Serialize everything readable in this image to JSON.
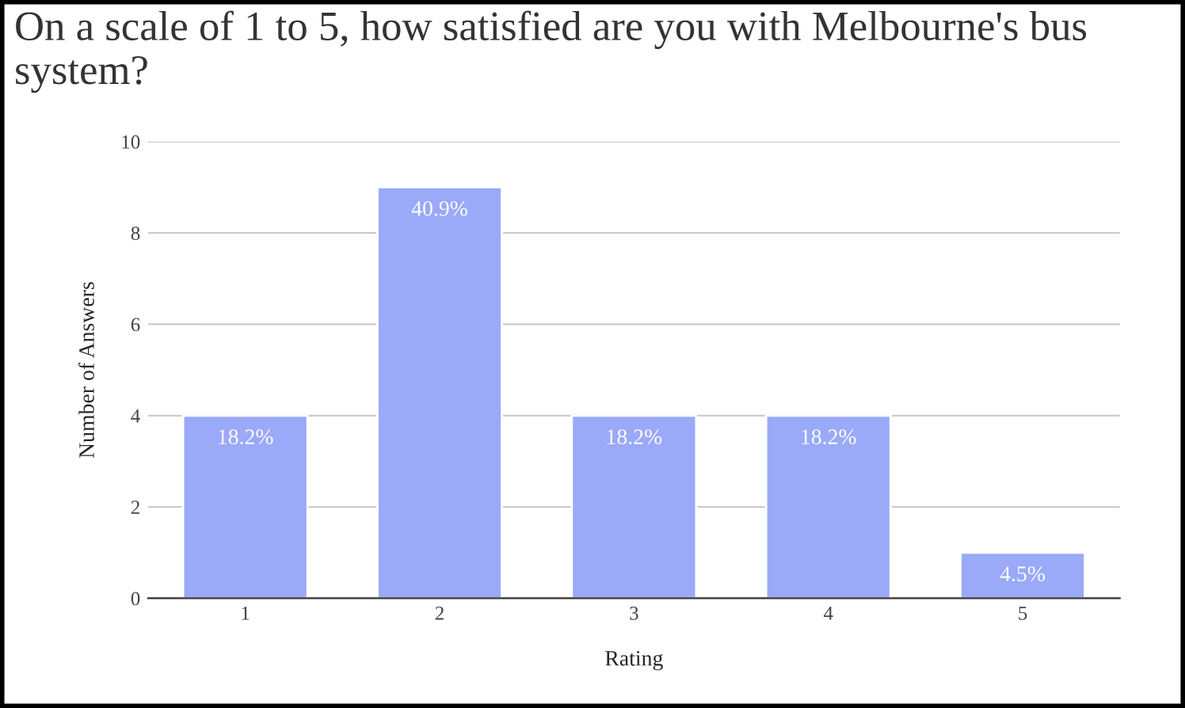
{
  "chart_data": {
    "type": "bar",
    "title": "On a scale of 1 to 5, how satisfied are you with Melbourne's bus system?",
    "xlabel": "Rating",
    "ylabel": "Number of Answers",
    "categories": [
      "1",
      "2",
      "3",
      "4",
      "5"
    ],
    "values": [
      4,
      9,
      4,
      4,
      1
    ],
    "annotations": [
      {
        "text": "18.2%",
        "x": "1",
        "y": 4
      },
      {
        "text": "40.9%",
        "x": "2",
        "y": 9
      },
      {
        "text": "18.2%",
        "x": "3",
        "y": 4
      },
      {
        "text": "18.2%",
        "x": "4",
        "y": 4
      },
      {
        "text": "4.5%",
        "x": "5",
        "y": 1
      }
    ],
    "color": "#9aa9f8",
    "ylim": [
      0,
      10
    ],
    "yticks": [
      0,
      2,
      4,
      6,
      8,
      10
    ],
    "grid": "y",
    "legend": false
  }
}
